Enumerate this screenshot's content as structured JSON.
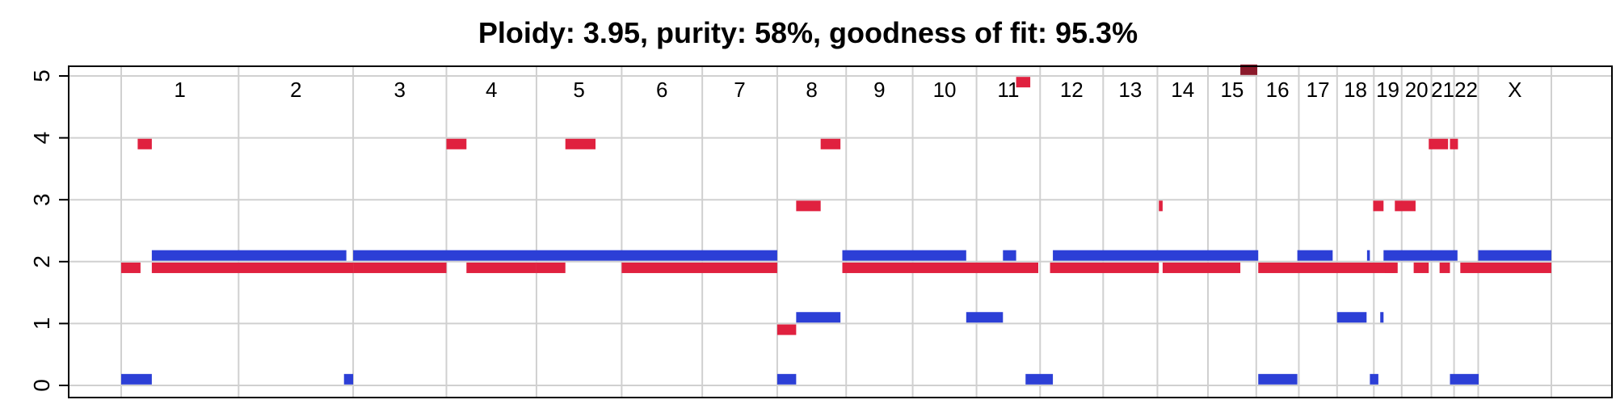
{
  "chart_data": {
    "type": "segment",
    "title": "Ploidy: 3.95, purity: 58%, goodness of fit: 95.3%",
    "xlabel": "",
    "ylabel": "",
    "ylim": [
      0,
      5
    ],
    "y_ticks": [
      "0",
      "1",
      "2",
      "3",
      "4",
      "5"
    ],
    "grid": true,
    "legend": "none",
    "colors": {
      "major": "#e0213f",
      "minor": "#2c3fd6",
      "overlap": "#8b1a2b",
      "grid": "#d0d0d0",
      "axis": "#000000"
    },
    "x_units": "kb",
    "chromosomes": [
      {
        "name": "1",
        "start": 0,
        "end": 249250
      },
      {
        "name": "2",
        "start": 249250,
        "end": 492450
      },
      {
        "name": "3",
        "start": 492450,
        "end": 690470
      },
      {
        "name": "4",
        "start": 690470,
        "end": 881620
      },
      {
        "name": "5",
        "start": 881620,
        "end": 1062530
      },
      {
        "name": "6",
        "start": 1062530,
        "end": 1233650
      },
      {
        "name": "7",
        "start": 1233650,
        "end": 1392790
      },
      {
        "name": "8",
        "start": 1392790,
        "end": 1539160
      },
      {
        "name": "9",
        "start": 1539160,
        "end": 1680370
      },
      {
        "name": "10",
        "start": 1680370,
        "end": 1815900
      },
      {
        "name": "11",
        "start": 1815900,
        "end": 1950910
      },
      {
        "name": "12",
        "start": 1950910,
        "end": 2084760
      },
      {
        "name": "13",
        "start": 2084760,
        "end": 2199930
      },
      {
        "name": "14",
        "start": 2199930,
        "end": 2307280
      },
      {
        "name": "15",
        "start": 2307280,
        "end": 2409810
      },
      {
        "name": "16",
        "start": 2409810,
        "end": 2500160
      },
      {
        "name": "17",
        "start": 2500160,
        "end": 2581360
      },
      {
        "name": "18",
        "start": 2581360,
        "end": 2659440
      },
      {
        "name": "19",
        "start": 2659440,
        "end": 2718570
      },
      {
        "name": "20",
        "start": 2718570,
        "end": 2781600
      },
      {
        "name": "21",
        "start": 2781600,
        "end": 2829730
      },
      {
        "name": "22",
        "start": 2829730,
        "end": 2881030
      },
      {
        "name": "X",
        "start": 2881030,
        "end": 3036300
      }
    ],
    "series": [
      {
        "name": "major",
        "segments": [
          {
            "x0": 0,
            "x1": 41000,
            "y": 1.9
          },
          {
            "x0": 35000,
            "x1": 65000,
            "y": 3.9
          },
          {
            "x0": 65000,
            "x1": 492450,
            "y": 1.9
          },
          {
            "x0": 492450,
            "x1": 690470,
            "y": 1.9
          },
          {
            "x0": 690470,
            "x1": 733000,
            "y": 3.9
          },
          {
            "x0": 733000,
            "x1": 881620,
            "y": 1.9
          },
          {
            "x0": 881620,
            "x1": 943000,
            "y": 1.9
          },
          {
            "x0": 943000,
            "x1": 1007000,
            "y": 3.9
          },
          {
            "x0": 1062530,
            "x1": 1392790,
            "y": 1.9
          },
          {
            "x0": 1392790,
            "x1": 1433000,
            "y": 0.9
          },
          {
            "x0": 1433000,
            "x1": 1485000,
            "y": 2.9
          },
          {
            "x0": 1485000,
            "x1": 1527000,
            "y": 3.9
          },
          {
            "x0": 1531000,
            "x1": 1947000,
            "y": 1.9
          },
          {
            "x0": 1900000,
            "x1": 1930000,
            "y": 4.9
          },
          {
            "x0": 1972000,
            "x1": 2203000,
            "y": 1.9
          },
          {
            "x0": 2203000,
            "x1": 2211000,
            "y": 2.9
          },
          {
            "x0": 2211000,
            "x1": 2376000,
            "y": 1.9
          },
          {
            "x0": 2376000,
            "x1": 2412000,
            "y": 5.1
          },
          {
            "x0": 2414000,
            "x1": 2710000,
            "y": 1.9
          },
          {
            "x0": 2658000,
            "x1": 2680000,
            "y": 2.9
          },
          {
            "x0": 2683000,
            "x1": 2704000,
            "y": 1.9
          },
          {
            "x0": 2704000,
            "x1": 2748000,
            "y": 2.9
          },
          {
            "x0": 2744000,
            "x1": 2776000,
            "y": 1.9
          },
          {
            "x0": 2776000,
            "x1": 2817000,
            "y": 3.9
          },
          {
            "x0": 2799000,
            "x1": 2821000,
            "y": 1.9
          },
          {
            "x0": 2821000,
            "x1": 2838000,
            "y": 3.9
          },
          {
            "x0": 2843000,
            "x1": 3036300,
            "y": 1.9
          }
        ]
      },
      {
        "name": "minor",
        "segments": [
          {
            "x0": 0,
            "x1": 65000,
            "y": 0.1
          },
          {
            "x0": 65000,
            "x1": 478000,
            "y": 2.1
          },
          {
            "x0": 473000,
            "x1": 492450,
            "y": 0.1
          },
          {
            "x0": 492450,
            "x1": 1392790,
            "y": 2.1
          },
          {
            "x0": 1392790,
            "x1": 1433000,
            "y": 0.1
          },
          {
            "x0": 1433000,
            "x1": 1527000,
            "y": 1.1
          },
          {
            "x0": 1531000,
            "x1": 1794000,
            "y": 2.1
          },
          {
            "x0": 1794000,
            "x1": 1872000,
            "y": 1.1
          },
          {
            "x0": 1872000,
            "x1": 1900000,
            "y": 2.1
          },
          {
            "x0": 1920000,
            "x1": 1978000,
            "y": 0.1
          },
          {
            "x0": 1978000,
            "x1": 2414000,
            "y": 2.1
          },
          {
            "x0": 2414000,
            "x1": 2497000,
            "y": 0.1
          },
          {
            "x0": 2497000,
            "x1": 2572000,
            "y": 2.1
          },
          {
            "x0": 2581360,
            "x1": 2644000,
            "y": 1.1
          },
          {
            "x0": 2645000,
            "x1": 2651000,
            "y": 2.1
          },
          {
            "x0": 2651000,
            "x1": 2669000,
            "y": 0.1
          },
          {
            "x0": 2673000,
            "x1": 2680000,
            "y": 1.1
          },
          {
            "x0": 2680000,
            "x1": 2837000,
            "y": 2.1
          },
          {
            "x0": 2821000,
            "x1": 2882000,
            "y": 0.1
          },
          {
            "x0": 2881030,
            "x1": 3036300,
            "y": 2.1
          }
        ]
      }
    ]
  }
}
